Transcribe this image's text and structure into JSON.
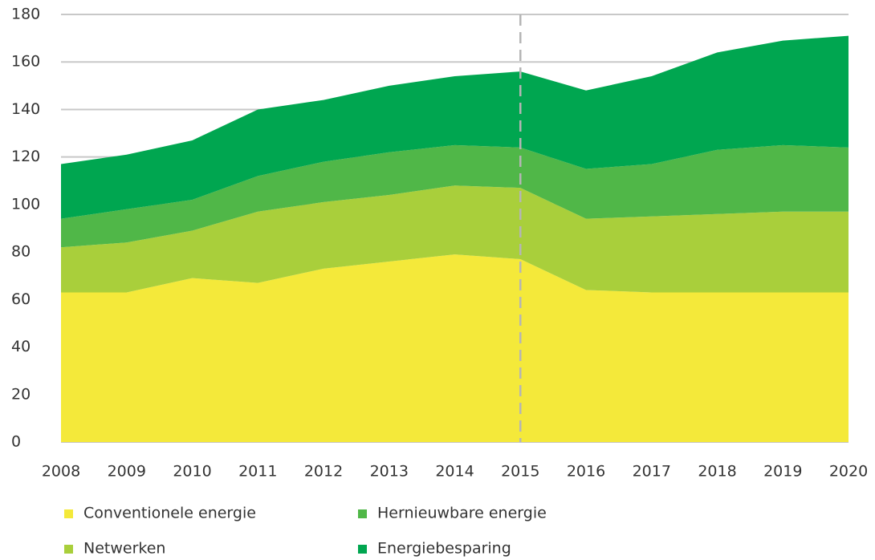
{
  "chart_data": {
    "type": "stacked_area",
    "x": [
      2008,
      2009,
      2010,
      2011,
      2012,
      2013,
      2014,
      2015,
      2016,
      2017,
      2018,
      2019,
      2020
    ],
    "series": [
      {
        "name": "Conventionele energie",
        "color": "#f4e93a",
        "values": [
          63,
          63,
          69,
          67,
          73,
          76,
          79,
          77,
          64,
          63,
          63,
          63,
          63
        ]
      },
      {
        "name": "Netwerken",
        "color": "#a9cf3b",
        "values": [
          19,
          21,
          20,
          30,
          28,
          28,
          29,
          30,
          30,
          32,
          33,
          34,
          34
        ]
      },
      {
        "name": "Hernieuwbare energie",
        "color": "#50b748",
        "values": [
          12,
          14,
          13,
          15,
          17,
          18,
          17,
          17,
          21,
          22,
          27,
          28,
          27
        ]
      },
      {
        "name": "Energiebesparing",
        "color": "#00a650",
        "values": [
          23,
          23,
          25,
          28,
          26,
          28,
          29,
          32,
          33,
          37,
          41,
          44,
          47
        ]
      }
    ],
    "xlim": [
      2008,
      2020
    ],
    "xticks": [
      2008,
      2009,
      2010,
      2011,
      2012,
      2013,
      2014,
      2015,
      2016,
      2017,
      2018,
      2019,
      2020
    ],
    "ylim": [
      0,
      180
    ],
    "yticks": [
      0,
      20,
      40,
      60,
      80,
      100,
      120,
      140,
      160,
      180
    ],
    "grid": true,
    "vline": 2015,
    "legend": "bottom"
  }
}
